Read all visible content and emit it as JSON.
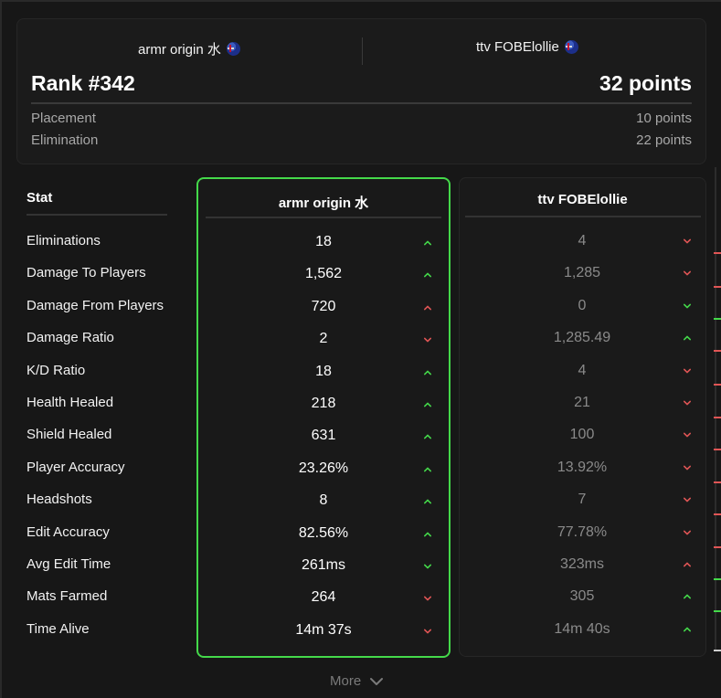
{
  "header": {
    "team_left": "armr origin 水",
    "team_right": "ttv FOBElollie",
    "rank": "Rank #342",
    "points": "32 points",
    "breakdown": [
      {
        "label": "Placement",
        "value": "10 points"
      },
      {
        "label": "Elimination",
        "value": "22 points"
      }
    ]
  },
  "stats": {
    "header": "Stat",
    "left_player": "armr origin 水",
    "right_player": "ttv FOBElollie",
    "colors": {
      "up": "#44d94a",
      "down": "#e05555",
      "highlight_border": "#44d94a"
    },
    "rows": [
      {
        "label": "Eliminations",
        "left": "18",
        "left_trend": "up",
        "left_trend_color": "green",
        "right": "4",
        "right_trend": "down",
        "right_trend_color": "red"
      },
      {
        "label": "Damage To Players",
        "left": "1,562",
        "left_trend": "up",
        "left_trend_color": "green",
        "right": "1,285",
        "right_trend": "down",
        "right_trend_color": "red"
      },
      {
        "label": "Damage From Players",
        "left": "720",
        "left_trend": "up",
        "left_trend_color": "red",
        "right": "0",
        "right_trend": "down",
        "right_trend_color": "green"
      },
      {
        "label": "Damage Ratio",
        "left": "2",
        "left_trend": "down",
        "left_trend_color": "red",
        "right": "1,285.49",
        "right_trend": "up",
        "right_trend_color": "green"
      },
      {
        "label": "K/D Ratio",
        "left": "18",
        "left_trend": "up",
        "left_trend_color": "green",
        "right": "4",
        "right_trend": "down",
        "right_trend_color": "red"
      },
      {
        "label": "Health Healed",
        "left": "218",
        "left_trend": "up",
        "left_trend_color": "green",
        "right": "21",
        "right_trend": "down",
        "right_trend_color": "red"
      },
      {
        "label": "Shield Healed",
        "left": "631",
        "left_trend": "up",
        "left_trend_color": "green",
        "right": "100",
        "right_trend": "down",
        "right_trend_color": "red"
      },
      {
        "label": "Player Accuracy",
        "left": "23.26%",
        "left_trend": "up",
        "left_trend_color": "green",
        "right": "13.92%",
        "right_trend": "down",
        "right_trend_color": "red"
      },
      {
        "label": "Headshots",
        "left": "8",
        "left_trend": "up",
        "left_trend_color": "green",
        "right": "7",
        "right_trend": "down",
        "right_trend_color": "red"
      },
      {
        "label": "Edit Accuracy",
        "left": "82.56%",
        "left_trend": "up",
        "left_trend_color": "green",
        "right": "77.78%",
        "right_trend": "down",
        "right_trend_color": "red"
      },
      {
        "label": "Avg Edit Time",
        "left": "261ms",
        "left_trend": "down",
        "left_trend_color": "green",
        "right": "323ms",
        "right_trend": "up",
        "right_trend_color": "red"
      },
      {
        "label": "Mats Farmed",
        "left": "264",
        "left_trend": "down",
        "left_trend_color": "red",
        "right": "305",
        "right_trend": "up",
        "right_trend_color": "green"
      },
      {
        "label": "Time Alive",
        "left": "14m 37s",
        "left_trend": "down",
        "left_trend_color": "red",
        "right": "14m 40s",
        "right_trend": "up",
        "right_trend_color": "green"
      }
    ]
  },
  "more_label": "More"
}
